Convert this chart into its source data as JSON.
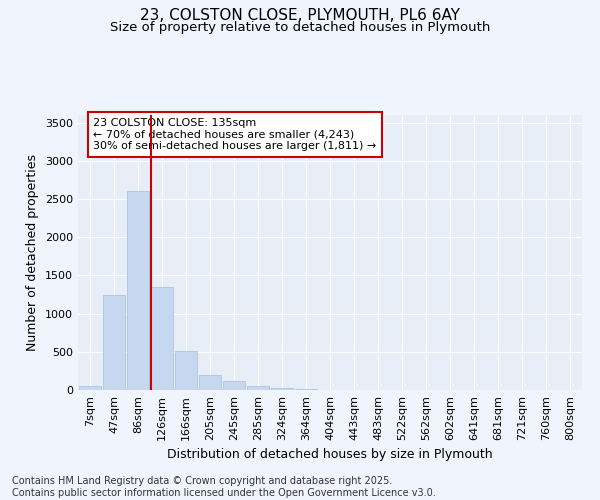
{
  "title_line1": "23, COLSTON CLOSE, PLYMOUTH, PL6 6AY",
  "title_line2": "Size of property relative to detached houses in Plymouth",
  "xlabel": "Distribution of detached houses by size in Plymouth",
  "ylabel": "Number of detached properties",
  "categories": [
    "7sqm",
    "47sqm",
    "86sqm",
    "126sqm",
    "166sqm",
    "205sqm",
    "245sqm",
    "285sqm",
    "324sqm",
    "364sqm",
    "404sqm",
    "443sqm",
    "483sqm",
    "522sqm",
    "562sqm",
    "602sqm",
    "641sqm",
    "681sqm",
    "721sqm",
    "760sqm",
    "800sqm"
  ],
  "values": [
    50,
    1250,
    2600,
    1350,
    510,
    200,
    115,
    50,
    20,
    10,
    0,
    5,
    0,
    0,
    0,
    0,
    0,
    0,
    0,
    0,
    0
  ],
  "bar_color": "#c5d8f0",
  "bar_edge_color": "#a0c0e0",
  "vline_color": "#cc0000",
  "annotation_text": "23 COLSTON CLOSE: 135sqm\n← 70% of detached houses are smaller (4,243)\n30% of semi-detached houses are larger (1,811) →",
  "annotation_box_color": "#ffffff",
  "annotation_box_edge": "#cc0000",
  "ylim": [
    0,
    3600
  ],
  "yticks": [
    0,
    500,
    1000,
    1500,
    2000,
    2500,
    3000,
    3500
  ],
  "background_color": "#f0f4fc",
  "plot_bg_color": "#e8eef8",
  "footer_line1": "Contains HM Land Registry data © Crown copyright and database right 2025.",
  "footer_line2": "Contains public sector information licensed under the Open Government Licence v3.0.",
  "title_fontsize": 11,
  "subtitle_fontsize": 9.5,
  "label_fontsize": 9,
  "tick_fontsize": 8,
  "footer_fontsize": 7
}
